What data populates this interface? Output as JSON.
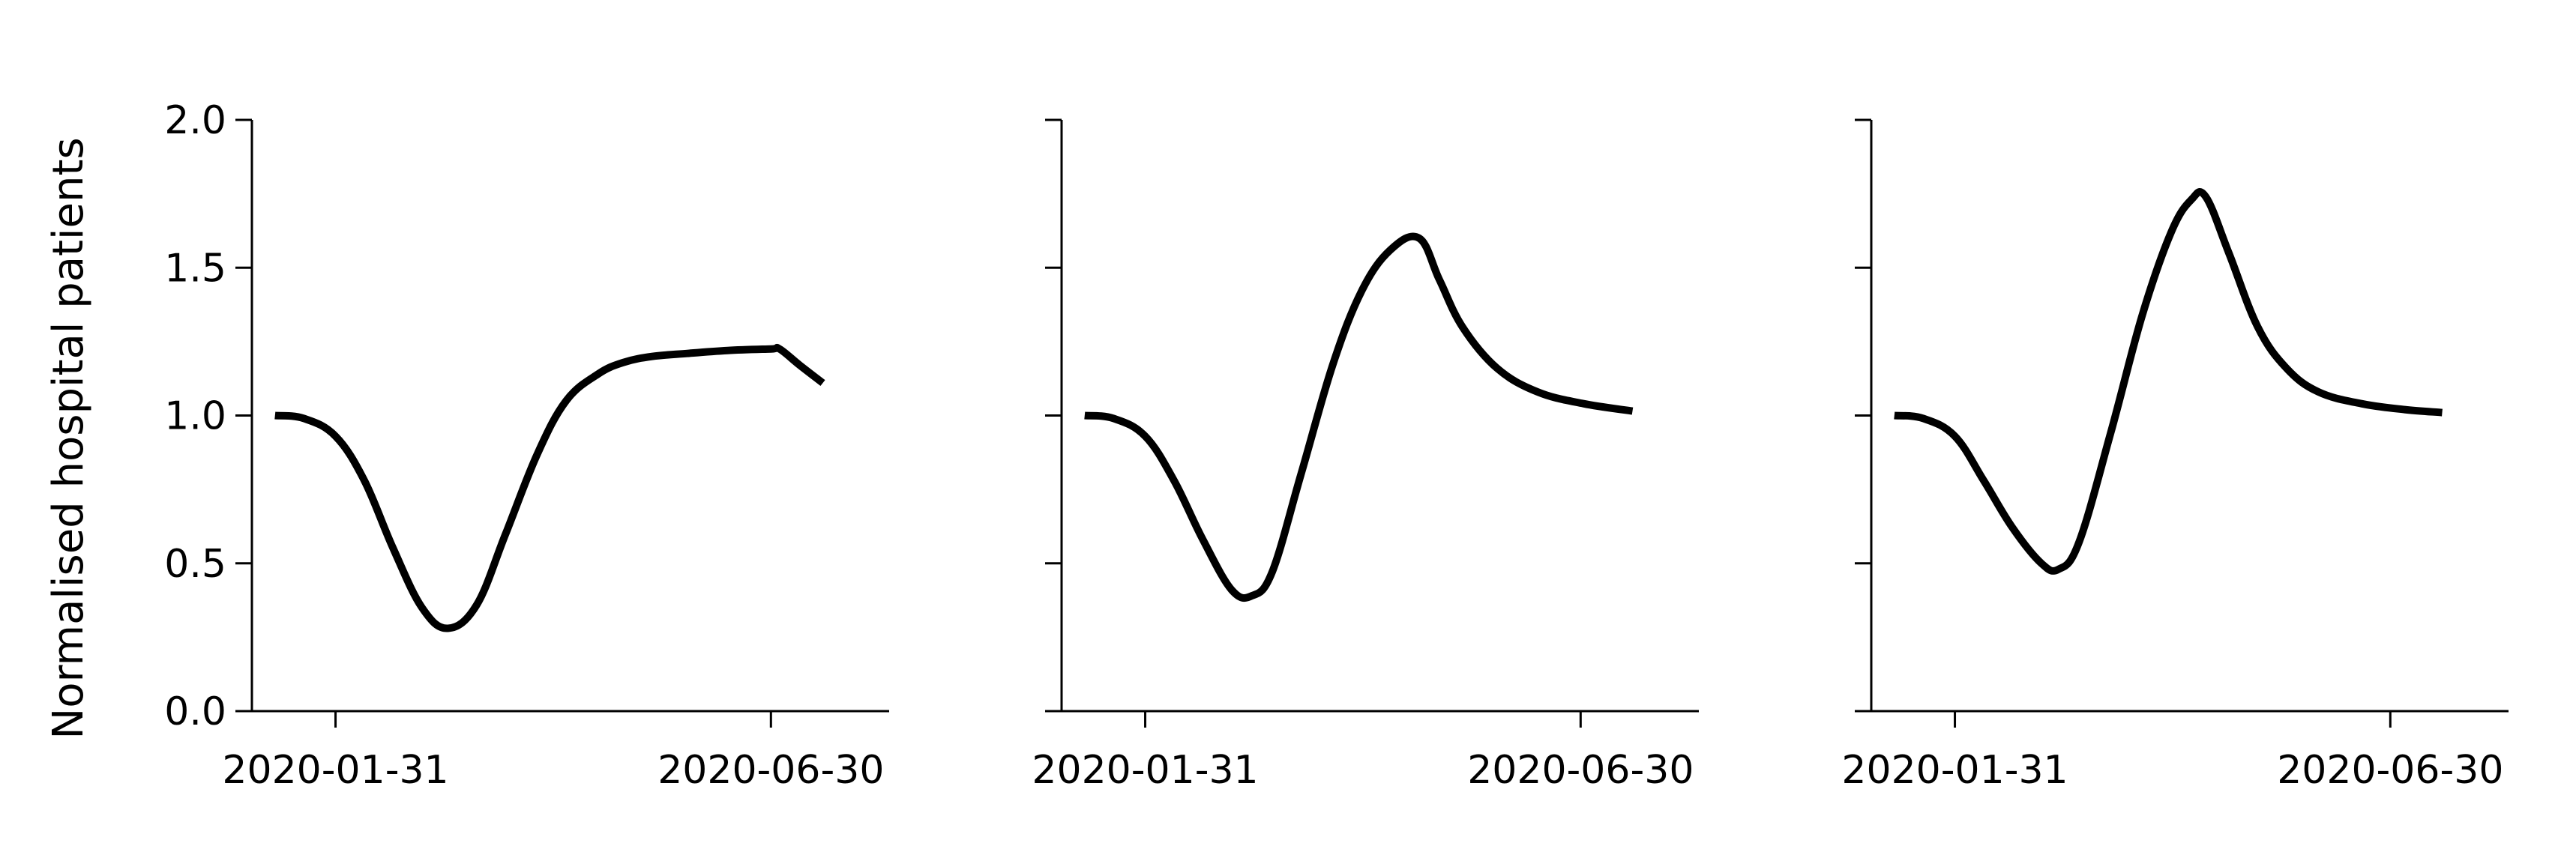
{
  "chart_data": {
    "type": "line",
    "ylabel": "Normalised hospital patients",
    "ylim": [
      0.0,
      2.0
    ],
    "yticks": [
      0.0,
      0.5,
      1.0,
      1.5,
      2.0
    ],
    "ytick_labels": [
      "0.0",
      "0.5",
      "1.0",
      "1.5",
      "2.0"
    ],
    "xlim": [
      "2020-01-02",
      "2020-08-10"
    ],
    "xticks": [
      "2020-01-31",
      "2020-06-30"
    ],
    "xtick_labels": [
      "2020-01-31",
      "2020-06-30"
    ],
    "line_color": "#000000",
    "grid": false,
    "panels": [
      {
        "series": [
          {
            "x": [
              "2020-01-10",
              "2020-01-20",
              "2020-01-31",
              "2020-02-10",
              "2020-02-20",
              "2020-03-01",
              "2020-03-10",
              "2020-03-20",
              "2020-03-30",
              "2020-04-10",
              "2020-04-20",
              "2020-05-01",
              "2020-05-10",
              "2020-05-20",
              "2020-06-01",
              "2020-06-15",
              "2020-06-30",
              "2020-07-03",
              "2020-07-10",
              "2020-07-18"
            ],
            "y": [
              1.0,
              0.99,
              0.93,
              0.78,
              0.55,
              0.35,
              0.28,
              0.36,
              0.6,
              0.87,
              1.05,
              1.14,
              1.18,
              1.2,
              1.21,
              1.22,
              1.225,
              1.225,
              1.17,
              1.11
            ]
          }
        ]
      },
      {
        "series": [
          {
            "x": [
              "2020-01-10",
              "2020-01-20",
              "2020-01-31",
              "2020-02-10",
              "2020-02-20",
              "2020-03-01",
              "2020-03-08",
              "2020-03-15",
              "2020-03-25",
              "2020-04-05",
              "2020-04-15",
              "2020-04-25",
              "2020-05-05",
              "2020-05-12",
              "2020-05-20",
              "2020-06-01",
              "2020-06-15",
              "2020-07-01",
              "2020-07-18"
            ],
            "y": [
              1.0,
              0.99,
              0.93,
              0.78,
              0.58,
              0.41,
              0.39,
              0.47,
              0.8,
              1.17,
              1.42,
              1.56,
              1.6,
              1.46,
              1.3,
              1.16,
              1.08,
              1.04,
              1.015
            ]
          }
        ]
      },
      {
        "series": [
          {
            "x": [
              "2020-01-10",
              "2020-01-20",
              "2020-01-31",
              "2020-02-10",
              "2020-02-20",
              "2020-03-01",
              "2020-03-07",
              "2020-03-14",
              "2020-03-25",
              "2020-04-05",
              "2020-04-15",
              "2020-04-22",
              "2020-04-27",
              "2020-05-05",
              "2020-05-15",
              "2020-05-25",
              "2020-06-05",
              "2020-06-20",
              "2020-07-05",
              "2020-07-18"
            ],
            "y": [
              1.0,
              0.99,
              0.93,
              0.78,
              0.62,
              0.5,
              0.48,
              0.57,
              0.94,
              1.34,
              1.62,
              1.73,
              1.74,
              1.55,
              1.3,
              1.16,
              1.08,
              1.04,
              1.02,
              1.01
            ]
          }
        ]
      }
    ]
  }
}
